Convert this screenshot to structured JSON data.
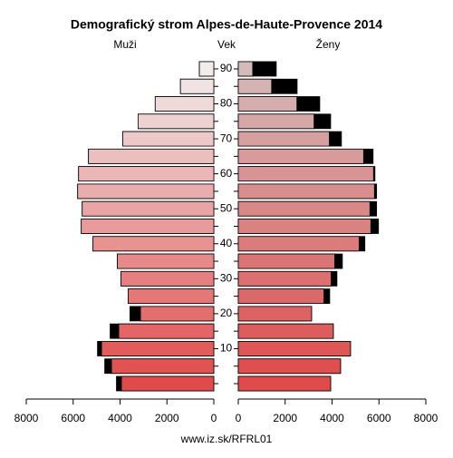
{
  "chart_data": {
    "type": "pyramid",
    "title": "Demografický strom Alpes-de-Haute-Provence 2014",
    "axis_label_center": "Vek",
    "categories": [
      null,
      null,
      "10",
      null,
      "20",
      null,
      "30",
      null,
      "40",
      null,
      "50",
      null,
      "60",
      null,
      "70",
      null,
      "80",
      null,
      "90"
    ],
    "series": [
      {
        "name": "Muži",
        "side": "left",
        "values": [
          4154,
          4654,
          4962,
          4423,
          3577,
          3654,
          3962,
          4115,
          5154,
          5654,
          5615,
          5808,
          5769,
          5346,
          3885,
          3231,
          2500,
          1423,
          615
        ],
        "colors": [
          "#e04a4a",
          "#e15353",
          "#e25c5c",
          "#e36565",
          "#e46e6e",
          "#e57777",
          "#e68080",
          "#e78989",
          "#e89292",
          "#e99b9b",
          "#e9a4a4",
          "#eaadad",
          "#ebb6b6",
          "#ecbfbf",
          "#edc8c8",
          "#eed1d1",
          "#efdada",
          "#f0e3e3",
          "#f2ecec"
        ]
      },
      {
        "name": "Ženy",
        "side": "right",
        "values": [
          3940,
          4363,
          4788,
          4054,
          3127,
          3900,
          4208,
          4440,
          5400,
          5980,
          5900,
          5900,
          5830,
          5750,
          4400,
          3940,
          3475,
          2510,
          1620
        ],
        "colors": [
          "#df4a4a",
          "#de5050",
          "#de5656",
          "#dd5d5d",
          "#dd6363",
          "#dc6969",
          "#dc6f6f",
          "#db7575",
          "#db7b7b",
          "#da8282",
          "#d98888",
          "#d98e8e",
          "#d89494",
          "#d89a9a",
          "#d7a0a0",
          "#d6a7a7",
          "#d6adad",
          "#d5b3b3",
          "#d4baba"
        ]
      }
    ],
    "excess_color": "#000000",
    "xlim": [
      0,
      8000
    ],
    "xticks": [
      0,
      2000,
      4000,
      6000,
      8000
    ],
    "source": "www.iz.sk/RFRL01"
  }
}
